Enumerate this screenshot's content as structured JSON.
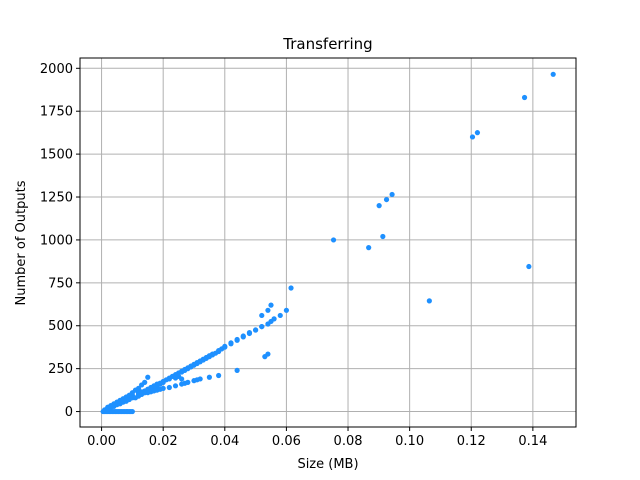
{
  "chart_data": {
    "type": "scatter",
    "title": "Transferring",
    "xlabel": "Size (MB)",
    "ylabel": "Number of Outputs",
    "xlim": [
      -0.007,
      0.154
    ],
    "ylim": [
      -90,
      2060
    ],
    "xticks": [
      0.0,
      0.02,
      0.04,
      0.06,
      0.08,
      0.1,
      0.12,
      0.14
    ],
    "xtick_labels": [
      "0.00",
      "0.02",
      "0.04",
      "0.06",
      "0.08",
      "0.10",
      "0.12",
      "0.14"
    ],
    "yticks": [
      0,
      250,
      500,
      750,
      1000,
      1250,
      1500,
      1750,
      2000
    ],
    "ytick_labels": [
      "0",
      "250",
      "500",
      "750",
      "1000",
      "1250",
      "1500",
      "1750",
      "2000"
    ],
    "grid": true,
    "marker_color": "#1e90ff",
    "series": [
      {
        "x": [
          0.0005,
          0.001,
          0.0015,
          0.002,
          0.0025,
          0.003,
          0.0035,
          0.004,
          0.0045,
          0.005,
          0.0055,
          0.006,
          0.0065,
          0.007,
          0.0075,
          0.008,
          0.0085,
          0.009,
          0.0095,
          0.01,
          0.001,
          0.002,
          0.003,
          0.004,
          0.005,
          0.006,
          0.007,
          0.008,
          0.009,
          0.01,
          0.002,
          0.003,
          0.004,
          0.005,
          0.006,
          0.007,
          0.008,
          0.009,
          0.01,
          0.011,
          0.012,
          0.013,
          0.014,
          0.015,
          0.002,
          0.003,
          0.004,
          0.005,
          0.006,
          0.007,
          0.008,
          0.009,
          0.01,
          0.011,
          0.012,
          0.013,
          0.014,
          0.015,
          0.016,
          0.017,
          0.018,
          0.019,
          0.02,
          0.022,
          0.024,
          0.026,
          0.027,
          0.028,
          0.029,
          0.03,
          0.031,
          0.032,
          0.033,
          0.034,
          0.035,
          0.036,
          0.037,
          0.038,
          0.039,
          0.04,
          0.042,
          0.044,
          0.046,
          0.048,
          0.05,
          0.052,
          0.054,
          0.055,
          0.056,
          0.058,
          0.06,
          0.012,
          0.013,
          0.014,
          0.015,
          0.016,
          0.017,
          0.018,
          0.019,
          0.02,
          0.022,
          0.024,
          0.026,
          0.027,
          0.028,
          0.03,
          0.031,
          0.032,
          0.012,
          0.013,
          0.014,
          0.015,
          0.016,
          0.017,
          0.018,
          0.019,
          0.02,
          0.021,
          0.022,
          0.023,
          0.024,
          0.025,
          0.026,
          0.027,
          0.028,
          0.029,
          0.03,
          0.031,
          0.032,
          0.033,
          0.034,
          0.035,
          0.036,
          0.038,
          0.04,
          0.042,
          0.044,
          0.046,
          0.048,
          0.05,
          0.052,
          0.052,
          0.054,
          0.055,
          0.0615,
          0.0753,
          0.0867,
          0.0901,
          0.0913,
          0.0925,
          0.0943,
          0.1064,
          0.1204,
          0.122,
          0.1373,
          0.1387,
          0.1466,
          0.024,
          0.025,
          0.026,
          0.035,
          0.038,
          0.044,
          0.053,
          0.054
        ],
        "y": [
          0,
          0,
          0,
          0,
          0,
          0,
          0,
          0,
          0,
          0,
          0,
          0,
          0,
          0,
          0,
          0,
          0,
          0,
          0,
          0,
          10,
          20,
          25,
          35,
          45,
          55,
          60,
          70,
          80,
          95,
          25,
          35,
          45,
          55,
          65,
          75,
          85,
          95,
          110,
          125,
          135,
          155,
          170,
          200,
          15,
          25,
          30,
          40,
          45,
          55,
          60,
          70,
          80,
          80,
          90,
          100,
          110,
          120,
          130,
          140,
          150,
          160,
          170,
          190,
          210,
          230,
          240,
          250,
          260,
          270,
          280,
          290,
          300,
          310,
          320,
          330,
          340,
          350,
          365,
          380,
          400,
          420,
          440,
          460,
          475,
          495,
          510,
          525,
          540,
          560,
          590,
          100,
          105,
          110,
          110,
          115,
          120,
          125,
          130,
          135,
          140,
          150,
          160,
          165,
          170,
          180,
          185,
          190,
          110,
          115,
          120,
          130,
          140,
          150,
          160,
          165,
          175,
          185,
          195,
          205,
          215,
          225,
          235,
          245,
          255,
          265,
          275,
          285,
          295,
          305,
          315,
          325,
          335,
          355,
          375,
          395,
          415,
          435,
          455,
          475,
          495,
          560,
          590,
          620,
          720,
          1000,
          955,
          1200,
          1020,
          1235,
          1265,
          645,
          1600,
          1625,
          1830,
          845,
          1965,
          195,
          205,
          190,
          200,
          210,
          240,
          320,
          335
        ]
      }
    ]
  },
  "dense_segment": {
    "x": [
      0.0,
      0.0105
    ],
    "y": [
      0,
      5
    ]
  }
}
